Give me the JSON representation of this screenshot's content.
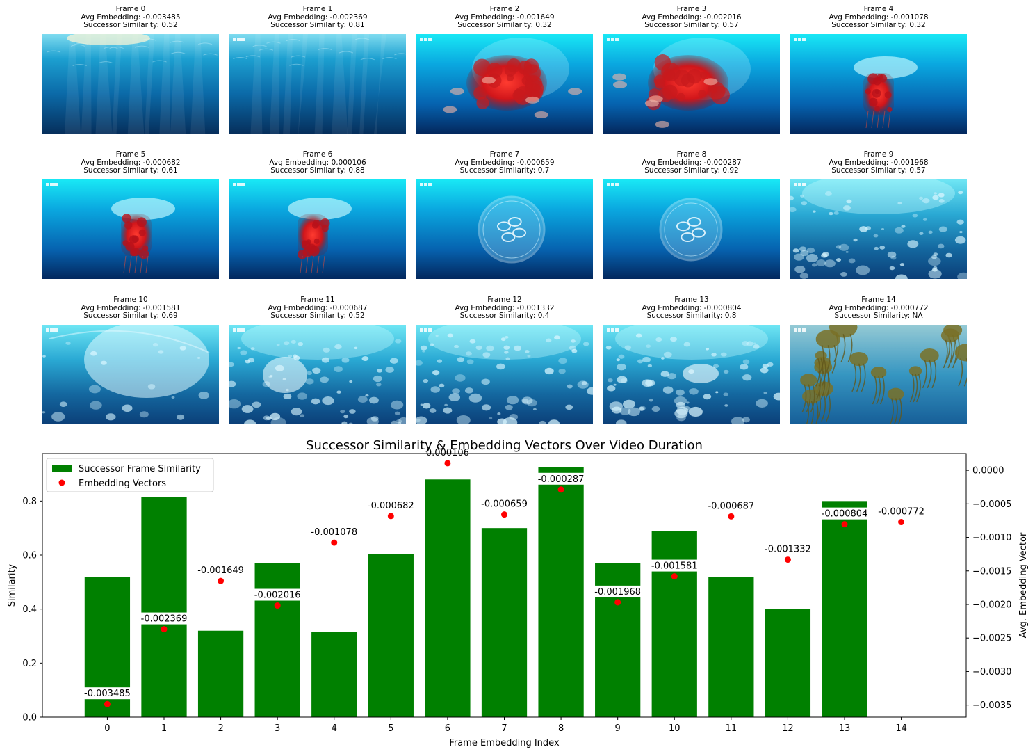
{
  "frames": [
    {
      "title": "Frame 0",
      "avg": "Avg Embedding: -0.003485",
      "sim": "Successor Similarity: 0.52",
      "scene": "surface",
      "watermark": ""
    },
    {
      "title": "Frame 1",
      "avg": "Avg Embedding: -0.002369",
      "sim": "Successor Similarity: 0.81",
      "scene": "surface",
      "watermark": "BBC"
    },
    {
      "title": "Frame 2",
      "avg": "Avg Embedding: -0.001649",
      "sim": "Successor Similarity: 0.32",
      "scene": "red-jelly-large",
      "watermark": "BBC"
    },
    {
      "title": "Frame 3",
      "avg": "Avg Embedding: -0.002016",
      "sim": "Successor Similarity: 0.57",
      "scene": "red-jelly-large",
      "watermark": "BBC"
    },
    {
      "title": "Frame 4",
      "avg": "Avg Embedding: -0.001078",
      "sim": "Successor Similarity: 0.32",
      "scene": "red-jelly",
      "watermark": "BBC"
    },
    {
      "title": "Frame 5",
      "avg": "Avg Embedding: -0.000682",
      "sim": "Successor Similarity: 0.61",
      "scene": "red-jelly",
      "watermark": "BBC"
    },
    {
      "title": "Frame 6",
      "avg": "Avg Embedding: 0.000106",
      "sim": "Successor Similarity: 0.88",
      "scene": "red-jelly",
      "watermark": "BBC"
    },
    {
      "title": "Frame 7",
      "avg": "Avg Embedding: -0.000659",
      "sim": "Successor Similarity: 0.7",
      "scene": "moon-jelly",
      "watermark": "BBC"
    },
    {
      "title": "Frame 8",
      "avg": "Avg Embedding: -0.000287",
      "sim": "Successor Similarity: 0.92",
      "scene": "moon-jelly",
      "watermark": "BBC"
    },
    {
      "title": "Frame 9",
      "avg": "Avg Embedding: -0.001968",
      "sim": "Successor Similarity: 0.57",
      "scene": "swarm",
      "watermark": "BBC"
    },
    {
      "title": "Frame 10",
      "avg": "Avg Embedding: -0.001581",
      "sim": "Successor Similarity: 0.69",
      "scene": "swarm-light",
      "watermark": "BBC"
    },
    {
      "title": "Frame 11",
      "avg": "Avg Embedding: -0.000687",
      "sim": "Successor Similarity: 0.52",
      "scene": "swarm",
      "watermark": "BBC"
    },
    {
      "title": "Frame 12",
      "avg": "Avg Embedding: -0.001332",
      "sim": "Successor Similarity: 0.4",
      "scene": "swarm",
      "watermark": "BBC"
    },
    {
      "title": "Frame 13",
      "avg": "Avg Embedding: -0.000804",
      "sim": "Successor Similarity: 0.8",
      "scene": "swarm",
      "watermark": "BBC"
    },
    {
      "title": "Frame 14",
      "avg": "Avg Embedding: -0.000772",
      "sim": "Successor Similarity: NA",
      "scene": "sea-nettles",
      "watermark": "BBC"
    }
  ],
  "chart_data": {
    "type": "bar",
    "title": "Successor Similarity & Embedding Vectors Over Video Duration",
    "xlabel": "Frame Embedding Index",
    "ylabel": "Similarity",
    "y2label": "Avg. Embedding Vector",
    "categories": [
      "0",
      "1",
      "2",
      "3",
      "4",
      "5",
      "6",
      "7",
      "8",
      "9",
      "10",
      "11",
      "12",
      "13",
      "14"
    ],
    "series": [
      {
        "name": "Successor Frame Similarity",
        "kind": "bar",
        "axis": "left",
        "color": "#008000",
        "values": [
          0.52,
          0.815,
          0.32,
          0.57,
          0.315,
          0.605,
          0.88,
          0.7,
          0.925,
          0.57,
          0.69,
          0.52,
          0.4,
          0.8,
          null
        ]
      },
      {
        "name": "Embedding Vectors",
        "kind": "scatter",
        "axis": "right",
        "color": "#ff0000",
        "values": [
          -0.003485,
          -0.002369,
          -0.001649,
          -0.002016,
          -0.001078,
          -0.000682,
          0.000106,
          -0.000659,
          -0.000287,
          -0.001968,
          -0.001581,
          -0.000687,
          -0.001332,
          -0.000804,
          -0.000772
        ]
      }
    ],
    "point_labels": [
      "-0.003485",
      "-0.002369",
      "-0.001649",
      "-0.002016",
      "-0.001078",
      "-0.000682",
      "0.000106",
      "-0.000659",
      "-0.000287",
      "-0.001968",
      "-0.001581",
      "-0.000687",
      "-0.001332",
      "-0.000804",
      "-0.000772"
    ],
    "ylim": [
      0,
      0.976
    ],
    "y2lim": [
      -0.00368,
      0.00025
    ],
    "yticks": [
      0.0,
      0.2,
      0.4,
      0.6,
      0.8
    ],
    "ytick_labels": [
      "0.0",
      "0.2",
      "0.4",
      "0.6",
      "0.8"
    ],
    "y2ticks": [
      0.0,
      -0.0005,
      -0.001,
      -0.0015,
      -0.002,
      -0.0025,
      -0.003,
      -0.0035
    ],
    "y2tick_labels": [
      "0.0000",
      "−0.0005",
      "−0.0010",
      "−0.0015",
      "−0.0020",
      "−0.0025",
      "−0.0030",
      "−0.0035"
    ],
    "legend_position": "top-left",
    "grid": false
  }
}
